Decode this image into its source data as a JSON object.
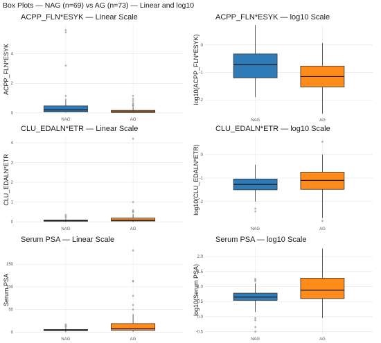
{
  "figure_title": "Box Plots — NAG (n=69) vs AG (n=73) — Linear and log10",
  "colors": {
    "NAG": "#2e7bb8",
    "AG": "#ff8c1a"
  },
  "chart_data": [
    {
      "type": "box",
      "title": "ACPP_FLN*ESYK — Linear Scale",
      "ylabel": "ACPP_FLN*ESYK",
      "categories": [
        "NAG",
        "AG"
      ],
      "ylim": [
        -0.1,
        6.0
      ],
      "yticks": [
        0,
        2,
        4
      ],
      "boxes": [
        {
          "name": "NAG",
          "whislo": 0.02,
          "q1": 0.06,
          "med": 0.2,
          "q3": 0.47,
          "whishi": 0.95,
          "fliers": [
            5.6,
            5.45,
            3.2,
            1.15
          ]
        },
        {
          "name": "AG",
          "whislo": 0.005,
          "q1": 0.03,
          "med": 0.07,
          "q3": 0.17,
          "whishi": 0.38,
          "fliers": [
            1.15,
            0.95,
            0.8,
            0.65,
            0.55,
            0.5,
            0.45
          ]
        }
      ]
    },
    {
      "type": "box",
      "title": "ACPP_FLN*ESYK — log10 Scale",
      "ylabel": "log10(ACPP_FLN*ESYK)",
      "categories": [
        "NAG",
        "AG"
      ],
      "ylim": [
        -2.55,
        0.75
      ],
      "yticks": [
        0,
        -1,
        -2
      ],
      "boxes": [
        {
          "name": "NAG",
          "whislo": -1.9,
          "q1": -1.2,
          "med": -0.72,
          "q3": -0.33,
          "whishi": 0.72,
          "fliers": []
        },
        {
          "name": "AG",
          "whislo": -2.5,
          "q1": -1.53,
          "med": -1.15,
          "q3": -0.77,
          "whishi": 0.07,
          "fliers": []
        }
      ]
    },
    {
      "type": "box",
      "title": "CLU_EDALN*ETR — Linear Scale",
      "ylabel": "CLU_EDALN*ETR",
      "categories": [
        "NAG",
        "AG"
      ],
      "ylim": [
        -0.1,
        4.35
      ],
      "yticks": [
        0,
        1,
        2,
        3,
        4
      ],
      "boxes": [
        {
          "name": "NAG",
          "whislo": 0.005,
          "q1": 0.03,
          "med": 0.055,
          "q3": 0.09,
          "whishi": 0.16,
          "fliers": [
            0.35,
            0.28,
            0.22
          ]
        },
        {
          "name": "AG",
          "whislo": 0.002,
          "q1": 0.04,
          "med": 0.08,
          "q3": 0.19,
          "whishi": 0.4,
          "fliers": [
            4.2,
            1.0,
            0.58,
            0.52,
            0.5
          ]
        }
      ]
    },
    {
      "type": "box",
      "title": "CLU_EDALN*ETR — log10 Scale",
      "ylabel": "log10(CLU_EDALN*ETR)",
      "categories": [
        "NAG",
        "AG"
      ],
      "ylim": [
        -2.95,
        0.8
      ],
      "yticks": [
        0,
        -1,
        -2
      ],
      "boxes": [
        {
          "name": "NAG",
          "whislo": -2.0,
          "q1": -1.5,
          "med": -1.27,
          "q3": -1.04,
          "whishi": -0.43,
          "fliers": [
            -2.3,
            -2.42
          ]
        },
        {
          "name": "AG",
          "whislo": -2.7,
          "q1": -1.48,
          "med": -1.1,
          "q3": -0.75,
          "whishi": 0.0,
          "fliers": [
            0.55,
            -2.82
          ]
        }
      ]
    },
    {
      "type": "box",
      "title": "Serum PSA — Linear Scale",
      "ylabel": "Serum PSA",
      "categories": [
        "NAG",
        "AG"
      ],
      "ylim": [
        -4,
        190
      ],
      "yticks": [
        0,
        50,
        100,
        150
      ],
      "boxes": [
        {
          "name": "NAG",
          "whislo": 0.3,
          "q1": 3.5,
          "med": 4.5,
          "q3": 6.0,
          "whishi": 10,
          "fliers": [
            17,
            15,
            13,
            11.5
          ]
        },
        {
          "name": "AG",
          "whislo": 0.9,
          "q1": 4,
          "med": 7.5,
          "q3": 19,
          "whishi": 40,
          "fliers": [
            180,
            113,
            112,
            80,
            60,
            50
          ]
        }
      ]
    },
    {
      "type": "box",
      "title": "Serum PSA — log10 Scale",
      "ylabel": "log10(Serum PSA)",
      "categories": [
        "NAG",
        "AG"
      ],
      "ylim": [
        -0.58,
        2.35
      ],
      "yticks": [
        -0.5,
        0.0,
        0.5,
        1.0,
        1.5,
        2.0
      ],
      "ytick_labels": [
        "-0.5",
        "0.0",
        "0.5",
        "1.0",
        "1.5",
        "2.0"
      ],
      "boxes": [
        {
          "name": "NAG",
          "whislo": 0.15,
          "q1": 0.54,
          "med": 0.65,
          "q3": 0.78,
          "whishi": 1.1,
          "fliers": [
            1.25,
            1.22,
            1.18,
            -0.05,
            -0.12,
            -0.35,
            -0.5
          ]
        },
        {
          "name": "AG",
          "whislo": -0.05,
          "q1": 0.6,
          "med": 0.88,
          "q3": 1.28,
          "whishi": 2.26,
          "fliers": []
        }
      ]
    }
  ]
}
